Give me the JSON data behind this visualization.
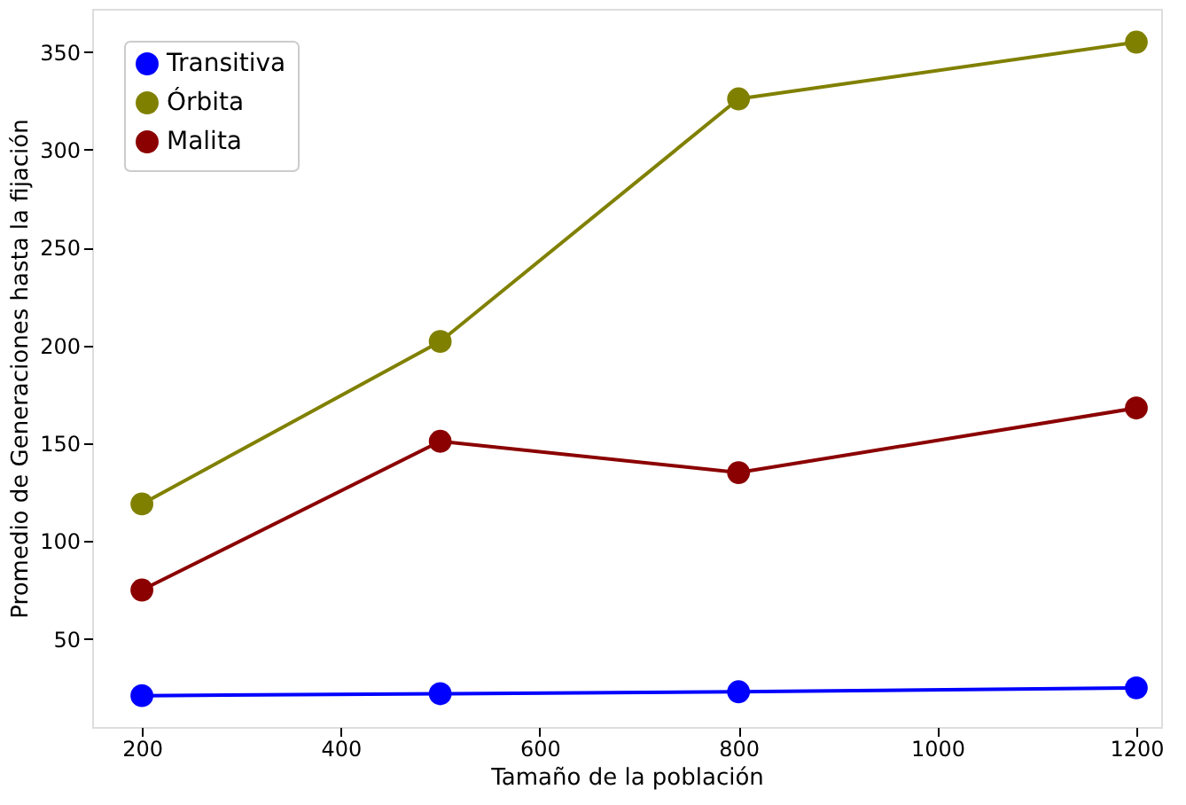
{
  "chart_data": {
    "type": "line",
    "xlabel": "Tamaño de la población",
    "ylabel": "Promedio de Generaciones hasta la fijación",
    "x": [
      200,
      500,
      800,
      1200
    ],
    "series": [
      {
        "name": "Transitiva",
        "color": "#0000ff",
        "values": [
          21,
          22,
          23,
          25
        ]
      },
      {
        "name": "Órbita",
        "color": "#808000",
        "values": [
          119,
          202,
          326,
          355
        ]
      },
      {
        "name": "Malita",
        "color": "#8b0000",
        "values": [
          75,
          151,
          135,
          168
        ]
      }
    ],
    "xlim": [
      150,
      1225
    ],
    "ylim": [
      5,
      372
    ],
    "xticks": [
      200,
      400,
      600,
      800,
      1000,
      1200
    ],
    "yticks": [
      50,
      100,
      150,
      200,
      250,
      300,
      350
    ],
    "grid": false,
    "legend": "top left",
    "marker": "circle",
    "line_style": "solid"
  }
}
